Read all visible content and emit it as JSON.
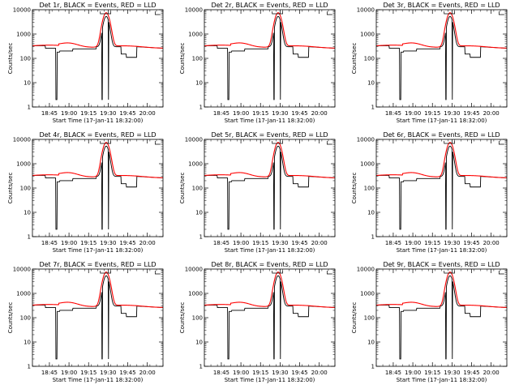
{
  "figure": {
    "background": "#ffffff",
    "events_color": "#000000",
    "lld_color": "#ff0000"
  },
  "chart_data": [
    {
      "type": "line",
      "title": "Det 1r, BLACK = Events, RED = LLD",
      "xlabel": "Start Time (17-Jan-11 18:32:00)",
      "ylabel": "Counts/sec",
      "yscale": "log",
      "ylim": [
        1,
        10000
      ],
      "xlim": [
        "18:32",
        "20:12"
      ],
      "x_tick_labels": [
        "18:45",
        "19:00",
        "19:15",
        "19:30",
        "19:45",
        "20:00"
      ],
      "y_tick_labels": [
        "1",
        "10",
        "100",
        "1000",
        "10000"
      ],
      "grid": false,
      "legend": "none",
      "series": [
        {
          "color": "#000000"
        },
        {
          "color": "#ff0000"
        }
      ]
    },
    {
      "type": "line",
      "title": "Det 2r, BLACK = Events, RED = LLD",
      "xlabel": "Start Time (17-Jan-11 18:32:00)",
      "ylabel": "Counts/sec",
      "yscale": "log",
      "ylim": [
        1,
        10000
      ],
      "xlim": [
        "18:32",
        "20:12"
      ],
      "x_tick_labels": [
        "18:45",
        "19:00",
        "19:15",
        "19:30",
        "19:45",
        "20:00"
      ],
      "y_tick_labels": [
        "1",
        "10",
        "100",
        "1000",
        "10000"
      ],
      "grid": false,
      "legend": "none",
      "series": [
        {
          "color": "#000000"
        },
        {
          "color": "#ff0000"
        }
      ]
    },
    {
      "type": "line",
      "title": "Det 3r, BLACK = Events, RED = LLD",
      "xlabel": "Start Time (17-Jan-11 18:32:00)",
      "ylabel": "Counts/sec",
      "yscale": "log",
      "ylim": [
        1,
        10000
      ],
      "xlim": [
        "18:32",
        "20:12"
      ],
      "x_tick_labels": [
        "18:45",
        "19:00",
        "19:15",
        "19:30",
        "19:45",
        "20:00"
      ],
      "y_tick_labels": [
        "1",
        "10",
        "100",
        "1000",
        "10000"
      ],
      "grid": false,
      "legend": "none",
      "series": [
        {
          "color": "#000000"
        },
        {
          "color": "#ff0000"
        }
      ]
    },
    {
      "type": "line",
      "title": "Det 4r, BLACK = Events, RED = LLD",
      "xlabel": "Start Time (17-Jan-11 18:32:00)",
      "ylabel": "Counts/sec",
      "yscale": "log",
      "ylim": [
        1,
        10000
      ],
      "xlim": [
        "18:32",
        "20:12"
      ],
      "x_tick_labels": [
        "18:45",
        "19:00",
        "19:15",
        "19:30",
        "19:45",
        "20:00"
      ],
      "y_tick_labels": [
        "1",
        "10",
        "100",
        "1000",
        "10000"
      ],
      "grid": false,
      "legend": "none",
      "series": [
        {
          "color": "#000000"
        },
        {
          "color": "#ff0000"
        }
      ]
    },
    {
      "type": "line",
      "title": "Det 5r, BLACK = Events, RED = LLD",
      "xlabel": "Start Time (17-Jan-11 18:32:00)",
      "ylabel": "Counts/sec",
      "yscale": "log",
      "ylim": [
        1,
        10000
      ],
      "xlim": [
        "18:32",
        "20:12"
      ],
      "x_tick_labels": [
        "18:45",
        "19:00",
        "19:15",
        "19:30",
        "19:45",
        "20:00"
      ],
      "y_tick_labels": [
        "1",
        "10",
        "100",
        "1000",
        "10000"
      ],
      "grid": false,
      "legend": "none",
      "series": [
        {
          "color": "#000000"
        },
        {
          "color": "#ff0000"
        }
      ]
    },
    {
      "type": "line",
      "title": "Det 6r, BLACK = Events, RED = LLD",
      "xlabel": "Start Time (17-Jan-11 18:32:00)",
      "ylabel": "Counts/sec",
      "yscale": "log",
      "ylim": [
        1,
        10000
      ],
      "xlim": [
        "18:32",
        "20:12"
      ],
      "x_tick_labels": [
        "18:45",
        "19:00",
        "19:15",
        "19:30",
        "19:45",
        "20:00"
      ],
      "y_tick_labels": [
        "1",
        "10",
        "100",
        "1000",
        "10000"
      ],
      "grid": false,
      "legend": "none",
      "series": [
        {
          "color": "#000000"
        },
        {
          "color": "#ff0000"
        }
      ]
    },
    {
      "type": "line",
      "title": "Det 7r, BLACK = Events, RED = LLD",
      "xlabel": "Start Time (17-Jan-11 18:32:00)",
      "ylabel": "Counts/sec",
      "yscale": "log",
      "ylim": [
        1,
        10000
      ],
      "xlim": [
        "18:32",
        "20:12"
      ],
      "x_tick_labels": [
        "18:45",
        "19:00",
        "19:15",
        "19:30",
        "19:45",
        "20:00"
      ],
      "y_tick_labels": [
        "1",
        "10",
        "100",
        "1000",
        "10000"
      ],
      "grid": false,
      "legend": "none",
      "series": [
        {
          "color": "#000000"
        },
        {
          "color": "#ff0000"
        }
      ]
    },
    {
      "type": "line",
      "title": "Det 8r, BLACK = Events, RED = LLD",
      "xlabel": "Start Time (17-Jan-11 18:32:00)",
      "ylabel": "Counts/sec",
      "yscale": "log",
      "ylim": [
        1,
        10000
      ],
      "xlim": [
        "18:32",
        "20:12"
      ],
      "x_tick_labels": [
        "18:45",
        "19:00",
        "19:15",
        "19:30",
        "19:45",
        "20:00"
      ],
      "y_tick_labels": [
        "1",
        "10",
        "100",
        "1000",
        "10000"
      ],
      "grid": false,
      "legend": "none",
      "series": [
        {
          "color": "#000000"
        },
        {
          "color": "#ff0000"
        }
      ]
    },
    {
      "type": "line",
      "title": "Det 9r, BLACK = Events, RED = LLD",
      "xlabel": "Start Time (17-Jan-11 18:32:00)",
      "ylabel": "Counts/sec",
      "yscale": "log",
      "ylim": [
        1,
        10000
      ],
      "xlim": [
        "18:32",
        "20:12"
      ],
      "x_tick_labels": [
        "18:45",
        "19:00",
        "19:15",
        "19:30",
        "19:45",
        "20:00"
      ],
      "y_tick_labels": [
        "1",
        "10",
        "100",
        "1000",
        "10000"
      ],
      "grid": false,
      "legend": "none",
      "series": [
        {
          "color": "#000000"
        },
        {
          "color": "#ff0000"
        }
      ]
    }
  ]
}
